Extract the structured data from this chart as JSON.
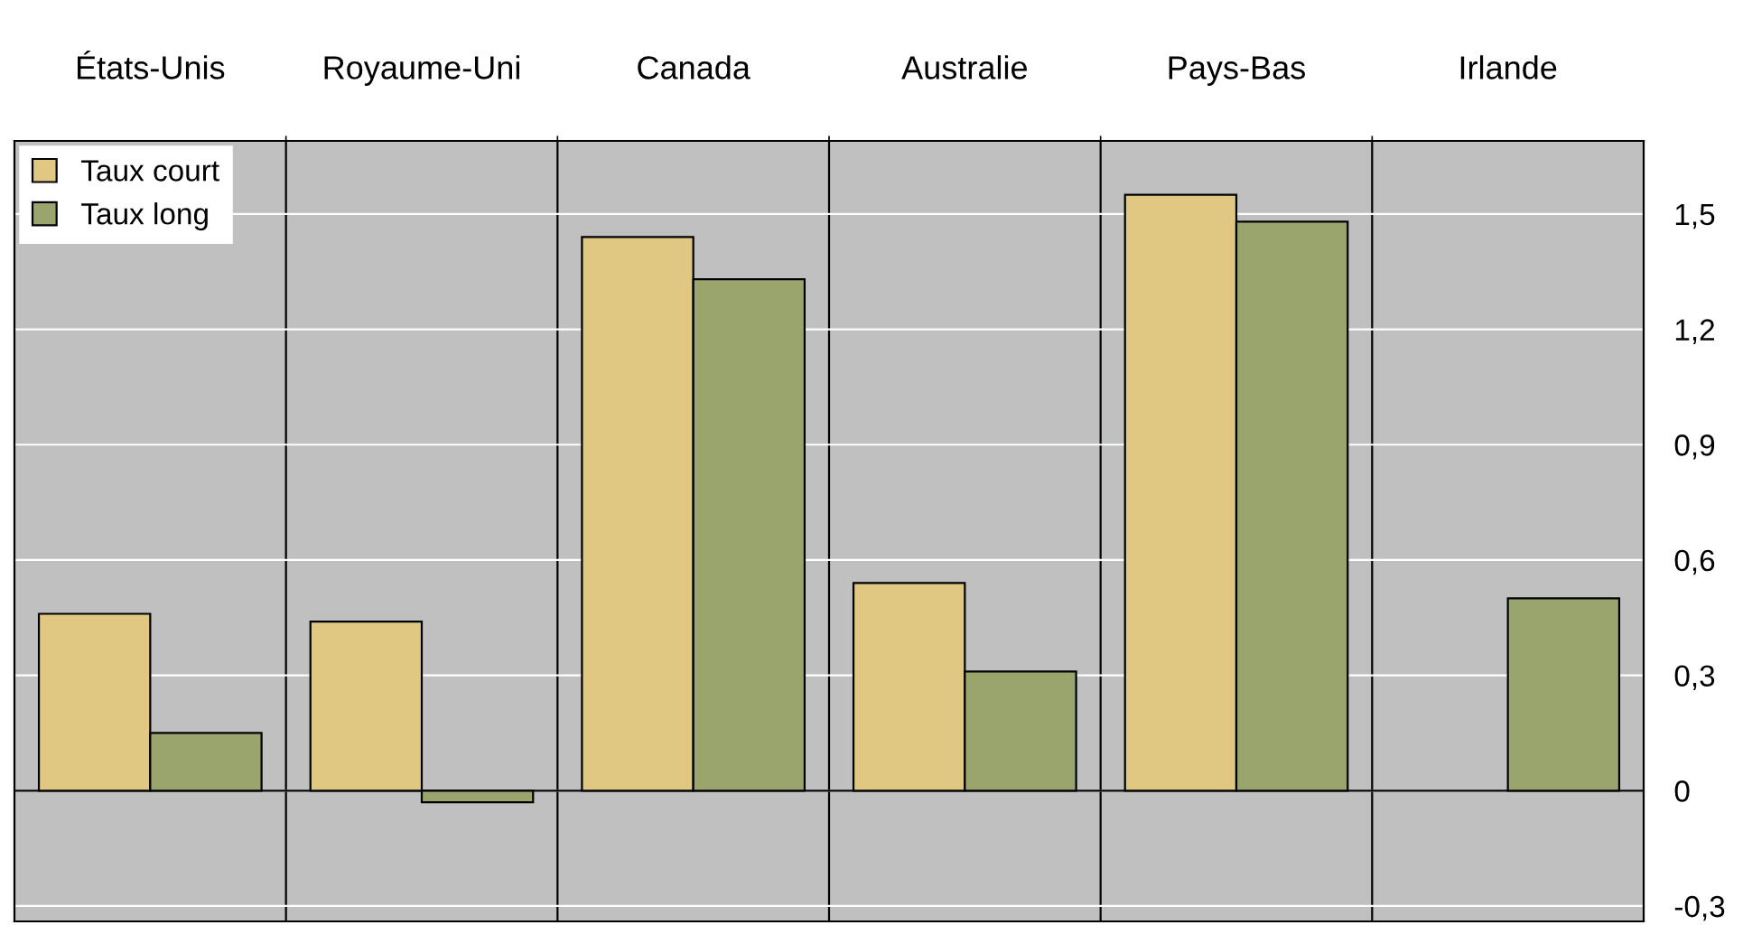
{
  "chart_data": {
    "type": "bar",
    "categories": [
      "États-Unis",
      "Royaume-Uni",
      "Canada",
      "Australie",
      "Pays-Bas",
      "Irlande"
    ],
    "series": [
      {
        "name": "Taux court",
        "color": "#e0c882",
        "values": [
          0.46,
          0.44,
          1.44,
          0.54,
          1.55,
          null
        ]
      },
      {
        "name": "Taux long",
        "color": "#9aa56e",
        "values": [
          0.15,
          -0.03,
          1.33,
          0.31,
          1.48,
          0.5
        ]
      }
    ],
    "ylim": [
      -0.34,
      1.69
    ],
    "yticks": [
      {
        "value": -0.3,
        "label": "-0,3"
      },
      {
        "value": 0,
        "label": "0"
      },
      {
        "value": 0.3,
        "label": "0,3"
      },
      {
        "value": 0.6,
        "label": "0,6"
      },
      {
        "value": 0.9,
        "label": "0,9"
      },
      {
        "value": 1.2,
        "label": "1,2"
      },
      {
        "value": 1.5,
        "label": "1,5"
      }
    ],
    "grid": true,
    "legend": "top left"
  }
}
